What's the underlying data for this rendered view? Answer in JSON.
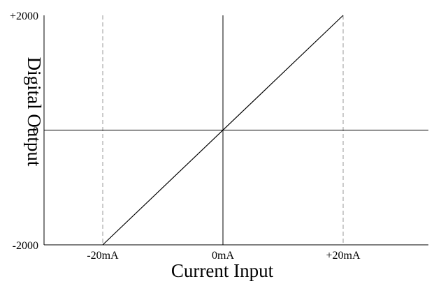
{
  "chart_data": {
    "type": "line",
    "title": "",
    "xlabel": "Current Input",
    "ylabel": "Digital Output",
    "xlim": [
      -20,
      20
    ],
    "ylim": [
      -2000,
      2000
    ],
    "x_ticks": [
      {
        "value": -20,
        "label": "-20mA"
      },
      {
        "value": 0,
        "label": "0mA"
      },
      {
        "value": 20,
        "label": "+20mA"
      }
    ],
    "y_ticks": [
      {
        "value": 2000,
        "label": "+2000"
      },
      {
        "value": 0,
        "label": "0"
      },
      {
        "value": -2000,
        "label": "-2000"
      }
    ],
    "series": [
      {
        "x": [
          -20,
          20
        ],
        "y": [
          -2000,
          2000
        ],
        "color": "#000000"
      }
    ],
    "reference_lines": [
      {
        "orientation": "vertical",
        "value": -20,
        "style": "dashed",
        "color": "#999999"
      },
      {
        "orientation": "vertical",
        "value": 20,
        "style": "dashed",
        "color": "#999999"
      },
      {
        "orientation": "vertical",
        "value": 0,
        "style": "solid",
        "color": "#000000"
      },
      {
        "orientation": "horizontal",
        "value": 0,
        "style": "solid",
        "color": "#000000"
      }
    ],
    "grid": false,
    "legend": "none"
  }
}
